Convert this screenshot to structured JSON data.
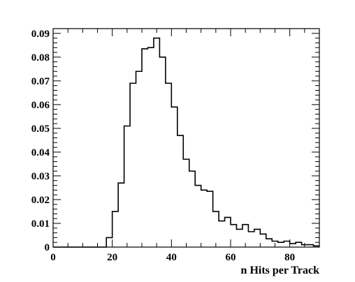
{
  "chart_data": {
    "type": "histogram",
    "title": "",
    "xlabel": "n Hits per Track",
    "ylabel": "",
    "xlim": [
      0,
      90
    ],
    "ylim": [
      0,
      0.092
    ],
    "bin_width": 2,
    "bin_edges_start": 0,
    "values": [
      0,
      0,
      0,
      0,
      0,
      0,
      0,
      0,
      0,
      0.004,
      0.015,
      0.027,
      0.051,
      0.069,
      0.074,
      0.0835,
      0.084,
      0.088,
      0.08,
      0.069,
      0.059,
      0.047,
      0.037,
      0.032,
      0.026,
      0.024,
      0.0235,
      0.015,
      0.011,
      0.0125,
      0.0095,
      0.0075,
      0.0095,
      0.0065,
      0.0075,
      0.0055,
      0.0035,
      0.0025,
      0.002,
      0.0025,
      0.0015,
      0.002,
      0.001,
      0.001,
      0.0005
    ],
    "x_ticks": [
      "0",
      "20",
      "40",
      "60",
      "80"
    ],
    "x_tick_values": [
      0,
      20,
      40,
      60,
      80
    ],
    "y_ticks": [
      "0",
      "0.01",
      "0.02",
      "0.03",
      "0.04",
      "0.05",
      "0.06",
      "0.07",
      "0.08",
      "0.09"
    ],
    "y_tick_values": [
      0,
      0.01,
      0.02,
      0.03,
      0.04,
      0.05,
      0.06,
      0.07,
      0.08,
      0.09
    ],
    "grid": false,
    "legend": "none"
  }
}
